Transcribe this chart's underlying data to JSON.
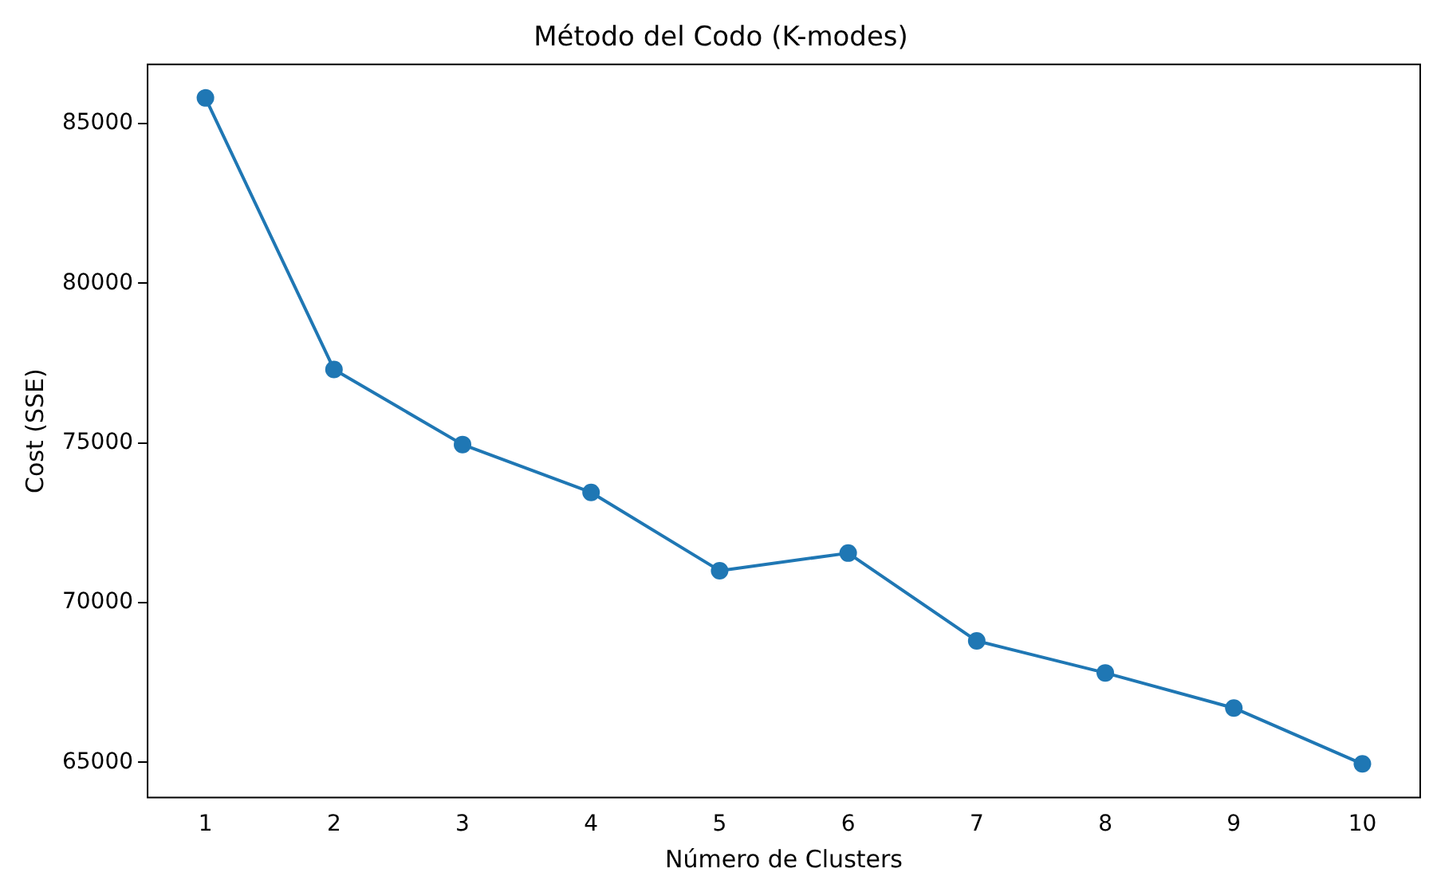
{
  "chart_data": {
    "type": "line",
    "title": "Método del Codo (K-modes)",
    "xlabel": "Número de Clusters",
    "ylabel": "Cost (SSE)",
    "x": [
      1,
      2,
      3,
      4,
      5,
      6,
      7,
      8,
      9,
      10
    ],
    "series": [
      {
        "color": "#1f77b4",
        "values": [
          85800,
          77300,
          74950,
          73450,
          71000,
          71550,
          68800,
          67800,
          66700,
          64950
        ]
      }
    ],
    "xlim": [
      0.55,
      10.45
    ],
    "xticks": [
      1,
      2,
      3,
      4,
      5,
      6,
      7,
      8,
      9,
      10
    ],
    "ylim": [
      63900,
      86850
    ],
    "yticks": [
      65000,
      70000,
      75000,
      80000,
      85000
    ],
    "grid": false,
    "legend": false,
    "marker": "circle",
    "line_style": "solid"
  }
}
